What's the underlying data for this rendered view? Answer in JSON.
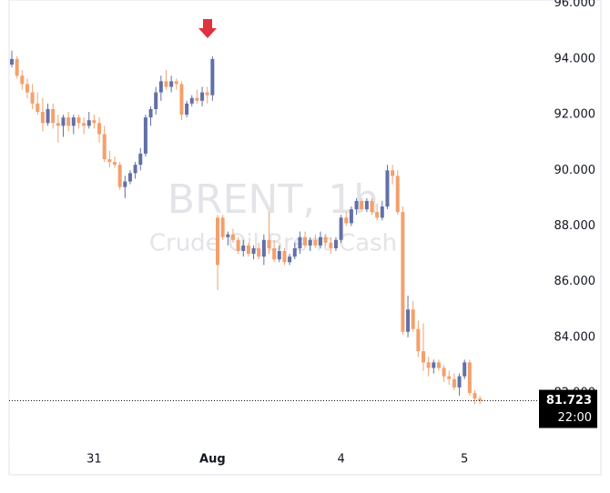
{
  "chart_data": {
    "type": "candlestick",
    "watermark": {
      "title": "BRENT, 1h",
      "subtitle": "Crude Oil Brent Cash"
    },
    "categories": [
      null,
      null,
      null,
      null,
      null,
      null,
      null,
      null,
      null,
      null,
      null,
      null,
      null,
      null,
      null,
      null,
      "31",
      null,
      null,
      null,
      null,
      null,
      null,
      null,
      null,
      null,
      null,
      null,
      null,
      null,
      null,
      null,
      null,
      null,
      null,
      null,
      null,
      null,
      null,
      "Aug",
      null,
      null,
      null,
      null,
      null,
      null,
      null,
      null,
      null,
      null,
      null,
      null,
      null,
      null,
      null,
      null,
      null,
      null,
      null,
      null,
      null,
      null,
      null,
      null,
      "4",
      null,
      null,
      null,
      null,
      null,
      null,
      null,
      null,
      null,
      null,
      null,
      null,
      null,
      null,
      null,
      null,
      null,
      null,
      null,
      null,
      null,
      null,
      null,
      "5",
      null,
      null,
      null
    ],
    "open": [
      93.8,
      94.0,
      93.4,
      93.1,
      92.8,
      92.4,
      92.1,
      91.7,
      92.2,
      91.7,
      91.6,
      91.9,
      91.6,
      91.9,
      91.7,
      91.6,
      91.8,
      91.7,
      91.3,
      90.4,
      90.3,
      90.2,
      89.4,
      89.6,
      89.9,
      90.2,
      90.6,
      91.9,
      92.2,
      92.8,
      93.2,
      93.0,
      93.2,
      93.1,
      92.0,
      92.4,
      92.6,
      92.5,
      92.8,
      92.7,
      88.3,
      88.3,
      87.6,
      87.7,
      87.5,
      87.1,
      87.3,
      87.0,
      87.2,
      86.9,
      87.5,
      87.2,
      86.8,
      87.1,
      86.7,
      86.9,
      87.2,
      87.6,
      87.3,
      87.5,
      87.3,
      87.6,
      87.4,
      87.2,
      87.5,
      88.3,
      88.1,
      88.6,
      88.9,
      88.6,
      88.9,
      88.5,
      88.3,
      88.7,
      90.0,
      89.8,
      88.5,
      84.2,
      85.0,
      84.3,
      83.5,
      83.1,
      82.9,
      83.1,
      82.9,
      82.6,
      82.5,
      82.2,
      82.6,
      83.1,
      82.0,
      81.8
    ],
    "high": [
      94.3,
      94.1,
      93.6,
      93.3,
      93.1,
      92.8,
      92.6,
      92.4,
      92.4,
      92.0,
      92.0,
      92.1,
      92.0,
      92.0,
      91.9,
      92.1,
      92.0,
      91.9,
      91.6,
      90.7,
      90.5,
      90.3,
      89.8,
      90.0,
      90.3,
      90.8,
      92.0,
      92.3,
      93.0,
      93.4,
      93.6,
      93.4,
      93.3,
      93.2,
      92.5,
      92.7,
      92.9,
      93.0,
      93.0,
      94.1,
      88.4,
      88.4,
      87.8,
      87.9,
      87.6,
      87.5,
      87.4,
      87.3,
      87.4,
      87.7,
      88.5,
      87.5,
      87.3,
      87.2,
      87.0,
      87.4,
      87.8,
      87.8,
      87.6,
      87.7,
      87.8,
      87.7,
      87.6,
      87.6,
      88.4,
      88.5,
      88.7,
      89.0,
      89.0,
      89.0,
      89.0,
      88.8,
      88.9,
      90.2,
      90.2,
      90.0,
      88.7,
      85.5,
      85.3,
      84.6,
      84.5,
      83.3,
      83.2,
      83.2,
      83.0,
      82.8,
      82.7,
      82.7,
      83.2,
      83.2,
      82.1,
      81.9
    ],
    "low": [
      93.7,
      93.3,
      92.9,
      92.6,
      92.2,
      92.0,
      91.4,
      91.6,
      91.5,
      91.0,
      91.2,
      91.4,
      91.3,
      91.5,
      91.3,
      91.5,
      91.5,
      91.0,
      90.3,
      90.1,
      90.1,
      89.3,
      89.0,
      89.5,
      89.7,
      90.0,
      90.5,
      91.6,
      92.0,
      92.5,
      92.9,
      92.8,
      92.9,
      91.8,
      91.9,
      92.3,
      92.4,
      92.3,
      92.4,
      92.5,
      85.7,
      87.5,
      87.3,
      87.4,
      87.0,
      86.9,
      86.9,
      86.8,
      86.8,
      86.6,
      87.0,
      86.7,
      86.7,
      86.6,
      86.6,
      86.8,
      87.0,
      87.2,
      87.1,
      87.2,
      87.2,
      87.3,
      87.0,
      87.1,
      87.4,
      88.0,
      88.0,
      88.4,
      88.5,
      88.5,
      88.4,
      88.2,
      88.2,
      88.6,
      89.5,
      88.4,
      84.1,
      84.0,
      84.2,
      83.3,
      82.8,
      82.6,
      82.7,
      82.8,
      82.4,
      82.3,
      82.1,
      81.9,
      82.5,
      81.9,
      81.6,
      81.6
    ],
    "close": [
      94.0,
      93.4,
      93.1,
      92.8,
      92.4,
      92.1,
      91.7,
      92.2,
      91.7,
      91.6,
      91.9,
      91.6,
      91.9,
      91.7,
      91.6,
      91.8,
      91.7,
      91.3,
      90.4,
      90.3,
      90.2,
      89.4,
      89.6,
      89.9,
      90.2,
      90.6,
      91.9,
      92.2,
      92.8,
      93.2,
      93.0,
      93.2,
      93.1,
      92.0,
      92.4,
      92.6,
      92.5,
      92.8,
      92.7,
      94.0,
      86.6,
      87.6,
      87.7,
      87.5,
      87.1,
      87.3,
      87.0,
      87.2,
      86.9,
      87.5,
      87.2,
      86.8,
      87.1,
      86.7,
      86.9,
      87.2,
      87.6,
      87.3,
      87.5,
      87.3,
      87.6,
      87.4,
      87.2,
      87.5,
      88.3,
      88.1,
      88.6,
      88.9,
      88.6,
      88.9,
      88.5,
      88.3,
      88.7,
      90.0,
      89.8,
      88.5,
      84.2,
      85.0,
      84.3,
      83.5,
      83.1,
      82.9,
      83.1,
      82.9,
      82.6,
      82.5,
      82.2,
      82.6,
      83.1,
      82.0,
      81.8,
      81.723
    ],
    "up_color": "#6270a8",
    "down_color": "#f4a06c",
    "ylim": [
      80.27,
      96.12
    ],
    "yticks": [
      {
        "value": 82,
        "label": "82.000"
      },
      {
        "value": 84,
        "label": "84.000"
      },
      {
        "value": 86,
        "label": "86.000"
      },
      {
        "value": 88,
        "label": "88.000"
      },
      {
        "value": 90,
        "label": "90.000"
      },
      {
        "value": 92,
        "label": "92.000"
      },
      {
        "value": 94,
        "label": "94.000"
      },
      {
        "value": 96,
        "label": "96.000"
      }
    ],
    "last_price": 81.723,
    "last_time": "22:00"
  }
}
